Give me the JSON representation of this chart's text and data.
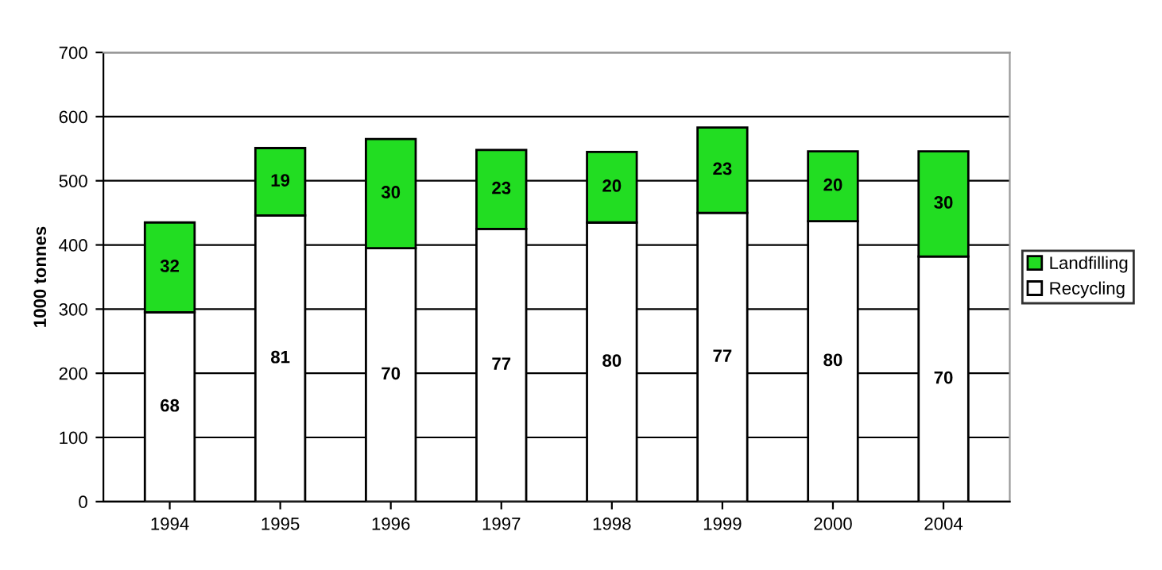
{
  "chart_data": {
    "type": "bar",
    "stacked": true,
    "ylabel": "1000 tonnes",
    "categories": [
      "1994",
      "1995",
      "1996",
      "1997",
      "1998",
      "1999",
      "2000",
      "2004"
    ],
    "series": [
      {
        "name": "Recycling",
        "color": "#ffffff",
        "values": [
          295,
          446,
          395,
          425,
          435,
          450,
          437,
          382
        ]
      },
      {
        "name": "Landfilling",
        "color": "#22dd22",
        "values": [
          140,
          105,
          170,
          123,
          110,
          133,
          109,
          164
        ]
      }
    ],
    "annotations": [
      "68",
      "32",
      "81",
      "19",
      "70",
      "30",
      "77",
      "23",
      "80",
      "20",
      "77",
      "23",
      "80",
      "20",
      "70",
      "30"
    ],
    "ylim": [
      0,
      700
    ],
    "yticks": [
      0,
      100,
      200,
      300,
      400,
      500,
      600,
      700
    ],
    "grid": "y",
    "legend": "right"
  }
}
